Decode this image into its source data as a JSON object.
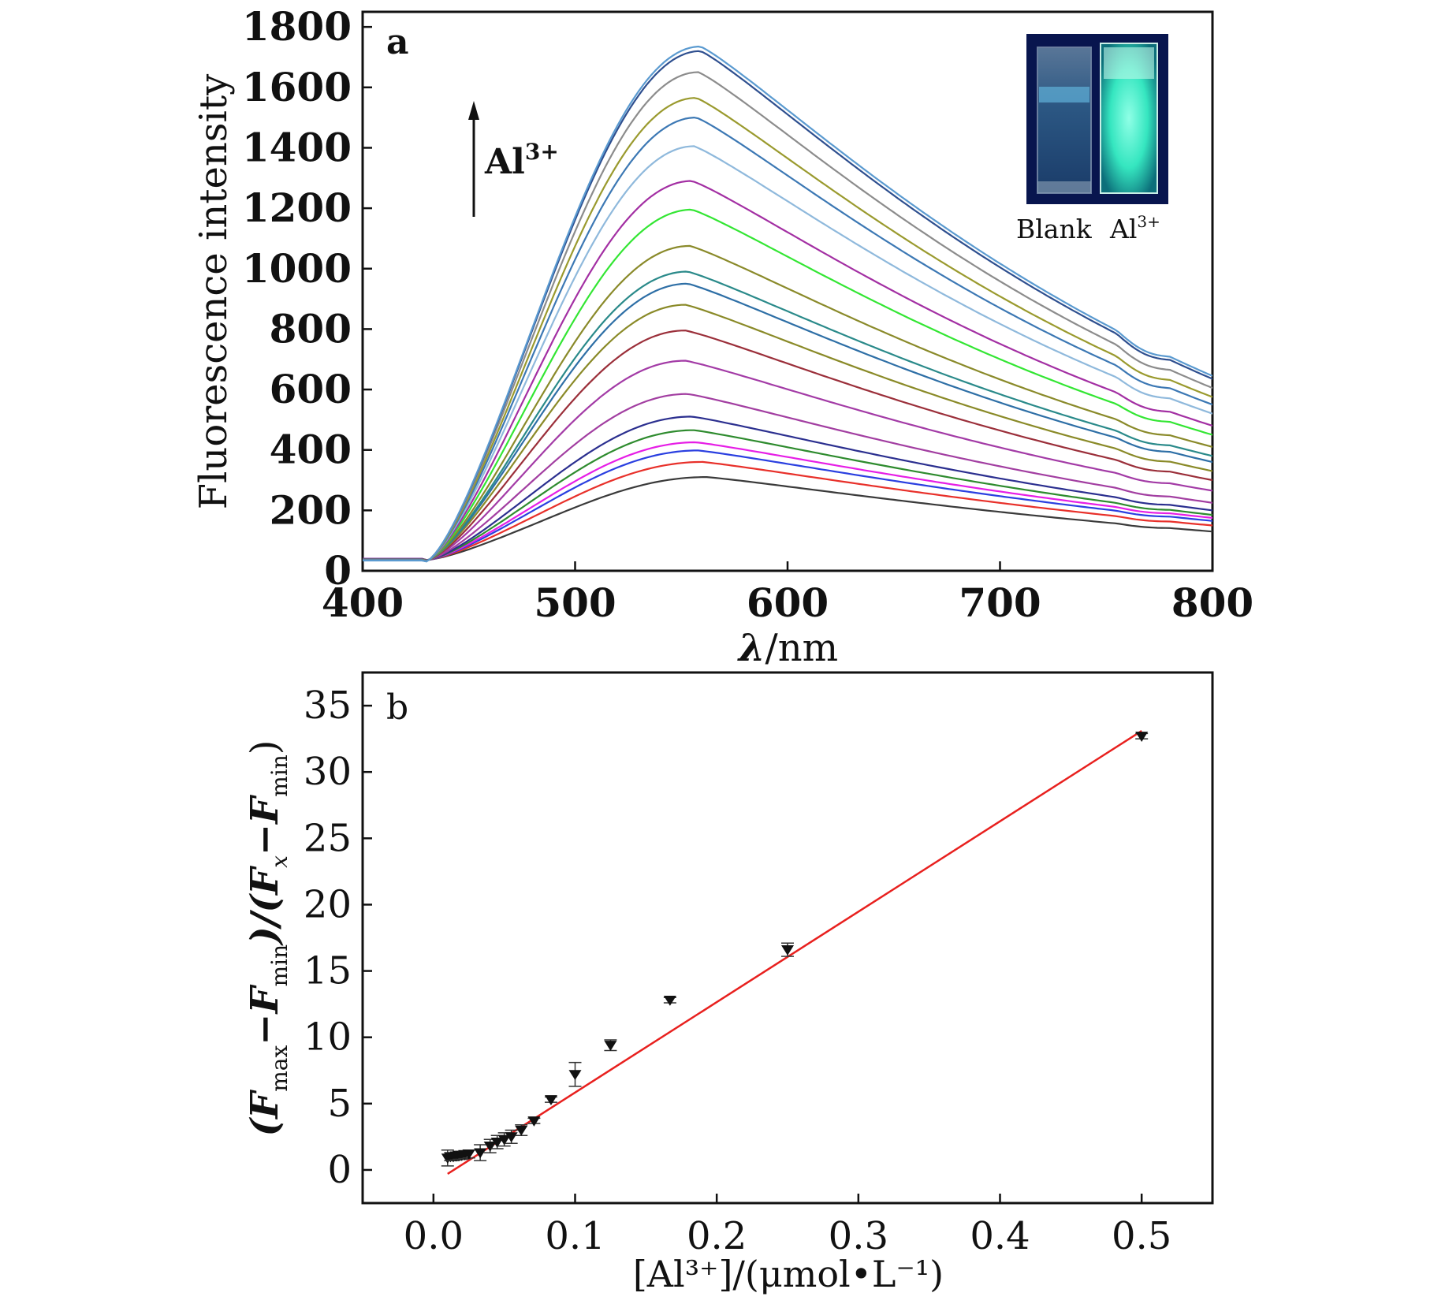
{
  "panel_a": {
    "label": "a",
    "ylabel": "Fluorescence intensity",
    "xlabel_symbol": "λ",
    "xlabel_unit": "/nm",
    "arrow_label": "Al",
    "arrow_label_sup": "3+",
    "inset": {
      "blank_label": "Blank",
      "al_label": "Al",
      "al_sup": "3+"
    }
  },
  "panel_b": {
    "label": "b",
    "ylabel_parts": [
      "(F",
      "max",
      "−F",
      "min",
      ")/(F",
      "x",
      "−F",
      "min",
      ")"
    ],
    "xlabel": "[Al³⁺]/(μmol•L⁻¹)"
  },
  "chart_data": [
    {
      "type": "line",
      "title": "",
      "panel": "a",
      "xlabel": "λ/nm",
      "ylabel": "Fluorescence intensity",
      "xlim": [
        400,
        800
      ],
      "ylim": [
        0,
        1850
      ],
      "xticks": [
        400,
        500,
        600,
        700,
        800
      ],
      "yticks": [
        0,
        200,
        400,
        600,
        800,
        1000,
        1200,
        1400,
        1600,
        1800
      ],
      "series": [
        {
          "name": "s1",
          "color": "#3a3a3a",
          "peak_x": 562,
          "peak": 310,
          "tail_800": 130
        },
        {
          "name": "s2",
          "color": "#e8302a",
          "peak_x": 560,
          "peak": 360,
          "tail_800": 150
        },
        {
          "name": "s3",
          "color": "#2a3fe0",
          "peak_x": 558,
          "peak": 398,
          "tail_800": 165
        },
        {
          "name": "s4",
          "color": "#e61ee6",
          "peak_x": 557,
          "peak": 425,
          "tail_800": 175
        },
        {
          "name": "s5",
          "color": "#2e8b2e",
          "peak_x": 556,
          "peak": 465,
          "tail_800": 185
        },
        {
          "name": "s6",
          "color": "#2b2f8f",
          "peak_x": 555,
          "peak": 510,
          "tail_800": 200
        },
        {
          "name": "s7",
          "color": "#a23ea1",
          "peak_x": 553,
          "peak": 585,
          "tail_800": 225
        },
        {
          "name": "s8",
          "color": "#a33ba6",
          "peak_x": 552,
          "peak": 695,
          "tail_800": 265
        },
        {
          "name": "s9",
          "color": "#9b2f3a",
          "peak_x": 552,
          "peak": 795,
          "tail_800": 300
        },
        {
          "name": "s10",
          "color": "#8a8a28",
          "peak_x": 552,
          "peak": 880,
          "tail_800": 330
        },
        {
          "name": "s11",
          "color": "#2e6fa6",
          "peak_x": 553,
          "peak": 950,
          "tail_800": 360
        },
        {
          "name": "s12",
          "color": "#2a8a8a",
          "peak_x": 553,
          "peak": 990,
          "tail_800": 380
        },
        {
          "name": "s13",
          "color": "#8a8a2a",
          "peak_x": 554,
          "peak": 1075,
          "tail_800": 410
        },
        {
          "name": "s14",
          "color": "#33e633",
          "peak_x": 555,
          "peak": 1195,
          "tail_800": 450
        },
        {
          "name": "s15",
          "color": "#a32fa3",
          "peak_x": 555,
          "peak": 1290,
          "tail_800": 480
        },
        {
          "name": "s16",
          "color": "#8fb9dc",
          "peak_x": 556,
          "peak": 1405,
          "tail_800": 520
        },
        {
          "name": "s17",
          "color": "#3c78b4",
          "peak_x": 557,
          "peak": 1500,
          "tail_800": 550
        },
        {
          "name": "s18",
          "color": "#9a9a2e",
          "peak_x": 557,
          "peak": 1565,
          "tail_800": 575
        },
        {
          "name": "s19",
          "color": "#8c8c8c",
          "peak_x": 558,
          "peak": 1650,
          "tail_800": 605
        },
        {
          "name": "s20",
          "color": "#2e4f8f",
          "peak_x": 559,
          "peak": 1720,
          "tail_800": 635
        },
        {
          "name": "s21",
          "color": "#5a9ad0",
          "peak_x": 559,
          "peak": 1735,
          "tail_800": 645
        }
      ]
    },
    {
      "type": "scatter",
      "title": "",
      "panel": "b",
      "xlabel": "[Al³⁺]/(μmol•L⁻¹)",
      "ylabel": "(Fmax−Fmin)/(Fx−Fmin)",
      "xlim": [
        -0.05,
        0.55
      ],
      "ylim": [
        -2.5,
        37.5
      ],
      "xticks": [
        0.0,
        0.1,
        0.2,
        0.3,
        0.4,
        0.5
      ],
      "xtick_labels": [
        "0.0",
        "0.1",
        "0.2",
        "0.3",
        "0.4",
        "0.5"
      ],
      "yticks": [
        0,
        5,
        10,
        15,
        20,
        25,
        30,
        35
      ],
      "points": [
        {
          "x": 0.01,
          "y": 0.9,
          "err": 0.6
        },
        {
          "x": 0.012,
          "y": 1.0,
          "err": 0.3
        },
        {
          "x": 0.014,
          "y": 1.0,
          "err": 0.3
        },
        {
          "x": 0.016,
          "y": 1.05,
          "err": 0.3
        },
        {
          "x": 0.018,
          "y": 1.1,
          "err": 0.3
        },
        {
          "x": 0.02,
          "y": 1.1,
          "err": 0.3
        },
        {
          "x": 0.022,
          "y": 1.15,
          "err": 0.3
        },
        {
          "x": 0.025,
          "y": 1.2,
          "err": 0.3
        },
        {
          "x": 0.033,
          "y": 1.3,
          "err": 0.6
        },
        {
          "x": 0.04,
          "y": 1.8,
          "err": 0.5
        },
        {
          "x": 0.045,
          "y": 2.1,
          "err": 0.5
        },
        {
          "x": 0.05,
          "y": 2.3,
          "err": 0.5
        },
        {
          "x": 0.055,
          "y": 2.5,
          "err": 0.5
        },
        {
          "x": 0.062,
          "y": 3.0,
          "err": 0.4
        },
        {
          "x": 0.071,
          "y": 3.7,
          "err": 0.2
        },
        {
          "x": 0.083,
          "y": 5.3,
          "err": 0.2
        },
        {
          "x": 0.1,
          "y": 7.2,
          "err": 0.9
        },
        {
          "x": 0.125,
          "y": 9.4,
          "err": 0.4
        },
        {
          "x": 0.167,
          "y": 12.8,
          "err": 0.2
        },
        {
          "x": 0.25,
          "y": 16.6,
          "err": 0.5
        },
        {
          "x": 0.5,
          "y": 32.7,
          "err": 0.2
        }
      ],
      "fit_line": {
        "color": "#e8201e",
        "x": [
          0.01,
          0.5
        ],
        "y": [
          -0.3,
          33.1
        ]
      }
    }
  ]
}
